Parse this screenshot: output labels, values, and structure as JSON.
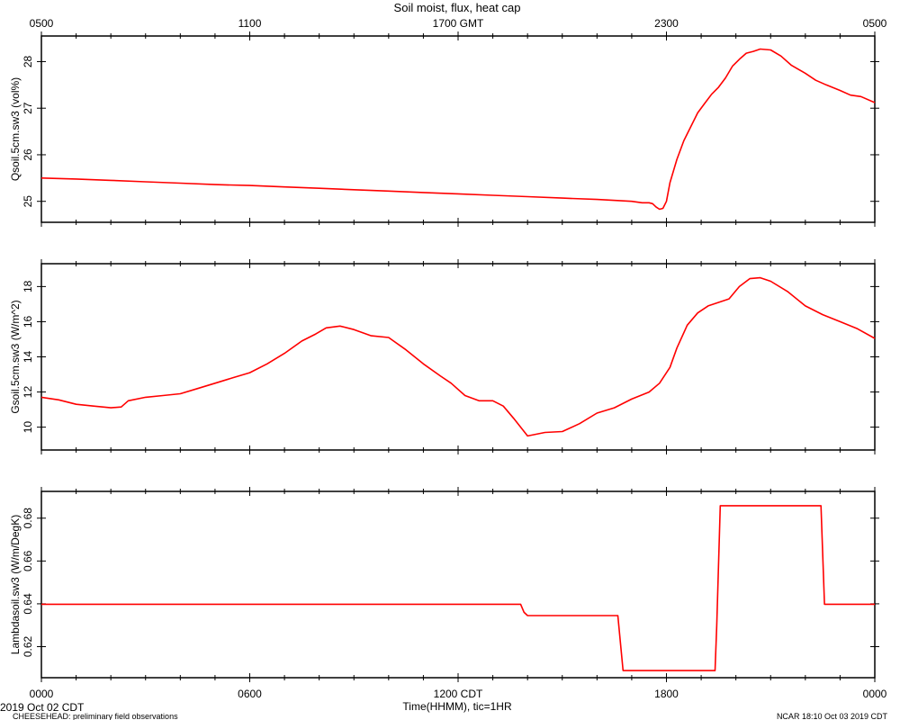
{
  "chart_data": {
    "type": "line",
    "title": "Soil moist, flux, heat cap",
    "series_color": "#ff0000",
    "x_top_ticks": [
      "0500",
      "1100",
      "1700 GMT",
      "2300",
      "0500"
    ],
    "x_bottom_ticks": [
      "0000",
      "0600",
      "1200 CDT",
      "1800",
      "0000"
    ],
    "x_range_hours_cdt": [
      0,
      24
    ],
    "xlabel": "Time(HHMM), tic=1HR",
    "footer_left_date": "2019 Oct 02 CDT",
    "footer_left_note": "CHEESEHEAD: preliminary field observations",
    "footer_right": "NCAR 18:10 Oct 03 2019 CDT",
    "grid": false,
    "panels": [
      {
        "ylabel": "Qsoil.5cm.sw3 (vol%)",
        "ylim": [
          24.55,
          28.55
        ],
        "yticks": [
          25,
          26,
          27,
          28
        ],
        "ytick_labels": [
          "25",
          "26",
          "27",
          "28"
        ],
        "series": [
          {
            "x": [
              0,
              1,
              2,
              3,
              4,
              5,
              6,
              7,
              8,
              9,
              10,
              11,
              12,
              13,
              14,
              15,
              16,
              17,
              17.3,
              17.5,
              17.6,
              17.7,
              17.8,
              17.9,
              18.0,
              18.1,
              18.3,
              18.5,
              18.7,
              18.9,
              19.1,
              19.3,
              19.5,
              19.7,
              19.9,
              20.1,
              20.3,
              20.5,
              20.7,
              21,
              21.3,
              21.6,
              22,
              22.3,
              22.6,
              23,
              23.3,
              23.6,
              24
            ],
            "y": [
              25.5,
              25.48,
              25.45,
              25.42,
              25.39,
              25.36,
              25.34,
              25.31,
              25.28,
              25.25,
              25.22,
              25.19,
              25.16,
              25.13,
              25.1,
              25.07,
              25.04,
              25.0,
              24.97,
              24.97,
              24.95,
              24.88,
              24.83,
              24.85,
              25.0,
              25.4,
              25.9,
              26.3,
              26.6,
              26.9,
              27.1,
              27.3,
              27.45,
              27.65,
              27.9,
              28.05,
              28.18,
              28.22,
              28.27,
              28.25,
              28.12,
              27.92,
              27.75,
              27.6,
              27.5,
              27.38,
              27.28,
              27.25,
              27.12
            ]
          }
        ]
      },
      {
        "ylabel": "Gsoil.5cm.sw3 (W/m^2)",
        "ylim": [
          8.7,
          19.3
        ],
        "yticks": [
          10,
          12,
          14,
          16,
          18
        ],
        "ytick_labels": [
          "10",
          "12",
          "14",
          "16",
          "18"
        ],
        "series": [
          {
            "x": [
              0,
              0.5,
              1,
              1.5,
              2,
              2.3,
              2.5,
              3,
              3.5,
              4,
              4.5,
              5,
              5.5,
              6,
              6.5,
              7,
              7.5,
              7.9,
              8.2,
              8.6,
              9,
              9.5,
              10,
              10.5,
              11,
              11.5,
              11.8,
              12.2,
              12.6,
              13,
              13.3,
              13.6,
              14,
              14.5,
              15,
              15.5,
              16,
              16.5,
              17,
              17.5,
              17.8,
              18.1,
              18.3,
              18.6,
              18.9,
              19.2,
              19.5,
              19.8,
              20.1,
              20.4,
              20.7,
              21,
              21.5,
              22,
              22.5,
              23,
              23.5,
              24
            ],
            "y": [
              11.7,
              11.55,
              11.3,
              11.2,
              11.1,
              11.15,
              11.5,
              11.7,
              11.8,
              11.9,
              12.2,
              12.5,
              12.8,
              13.1,
              13.6,
              14.2,
              14.9,
              15.3,
              15.65,
              15.75,
              15.55,
              15.2,
              15.1,
              14.4,
              13.6,
              12.9,
              12.5,
              11.8,
              11.5,
              11.5,
              11.2,
              10.5,
              9.5,
              9.7,
              9.75,
              10.2,
              10.8,
              11.1,
              11.6,
              12.0,
              12.5,
              13.4,
              14.5,
              15.8,
              16.5,
              16.9,
              17.1,
              17.3,
              18.0,
              18.45,
              18.5,
              18.3,
              17.7,
              16.9,
              16.4,
              16.0,
              15.6,
              15.05
            ]
          }
        ]
      },
      {
        "ylabel": "Lambdasoil.sw3 (W/m/DegK)",
        "ylim": [
          0.6055,
          0.6925
        ],
        "yticks": [
          0.62,
          0.64,
          0.66,
          0.68
        ],
        "ytick_labels": [
          "0.62",
          "0.64",
          "0.66",
          "0.68"
        ],
        "series": [
          {
            "x": [
              0,
              13.8,
              13.9,
              14.0,
              16.6,
              16.75,
              19.4,
              19.45,
              19.55,
              22.45,
              22.55,
              24
            ],
            "y": [
              0.6398,
              0.6398,
              0.636,
              0.6345,
              0.6345,
              0.6088,
              0.6088,
              0.63,
              0.6858,
              0.6858,
              0.6398,
              0.6398
            ]
          }
        ]
      }
    ]
  }
}
